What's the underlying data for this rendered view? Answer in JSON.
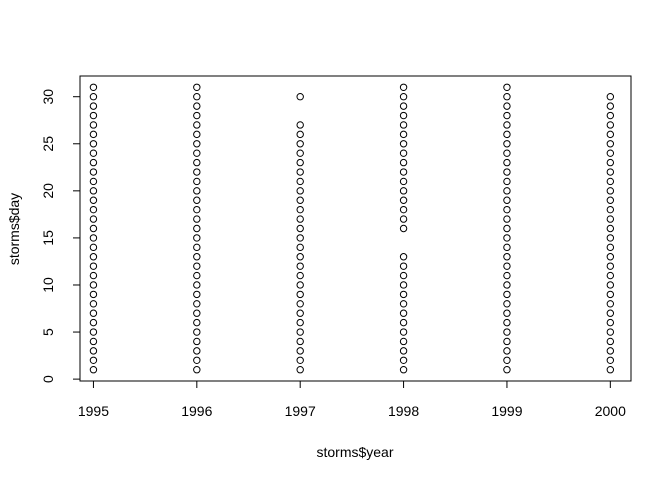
{
  "chart_data": {
    "type": "scatter",
    "title": "",
    "xlabel": "storms$year",
    "ylabel": "storms$day",
    "xlim": [
      1994.87,
      2000.2
    ],
    "ylim": [
      -0.2,
      32.2
    ],
    "x_ticks": [
      1995,
      1996,
      1997,
      1998,
      1999,
      2000
    ],
    "y_ticks": [
      0,
      5,
      10,
      15,
      20,
      25,
      30
    ],
    "grid": false,
    "legend": "none",
    "marker": "open-circle",
    "series": [
      {
        "points": [
          {
            "x": 1995,
            "y": [
              1,
              2,
              3,
              4,
              5,
              6,
              7,
              8,
              9,
              10,
              11,
              12,
              13,
              14,
              15,
              16,
              17,
              18,
              19,
              20,
              21,
              22,
              23,
              24,
              25,
              26,
              27,
              28,
              29,
              30,
              31
            ]
          },
          {
            "x": 1996,
            "y": [
              1,
              2,
              3,
              4,
              5,
              6,
              7,
              8,
              9,
              10,
              11,
              12,
              13,
              14,
              15,
              16,
              17,
              18,
              19,
              20,
              21,
              22,
              23,
              24,
              25,
              26,
              27,
              28,
              29,
              30,
              31
            ]
          },
          {
            "x": 1997,
            "y": [
              1,
              2,
              3,
              4,
              5,
              6,
              7,
              8,
              9,
              10,
              11,
              12,
              13,
              14,
              15,
              16,
              17,
              18,
              19,
              20,
              21,
              22,
              23,
              24,
              25,
              26,
              27,
              30
            ]
          },
          {
            "x": 1998,
            "y": [
              1,
              2,
              3,
              4,
              5,
              6,
              7,
              8,
              9,
              10,
              11,
              12,
              13,
              16,
              17,
              18,
              19,
              20,
              21,
              22,
              23,
              24,
              25,
              26,
              27,
              28,
              29,
              30,
              31
            ]
          },
          {
            "x": 1999,
            "y": [
              1,
              2,
              3,
              4,
              5,
              6,
              7,
              8,
              9,
              10,
              11,
              12,
              13,
              14,
              15,
              16,
              17,
              18,
              19,
              20,
              21,
              22,
              23,
              24,
              25,
              26,
              27,
              28,
              29,
              30,
              31
            ]
          },
          {
            "x": 2000,
            "y": [
              1,
              2,
              3,
              4,
              5,
              6,
              7,
              8,
              9,
              10,
              11,
              12,
              13,
              14,
              15,
              16,
              17,
              18,
              19,
              20,
              21,
              22,
              23,
              24,
              25,
              26,
              27,
              28,
              29,
              30
            ]
          }
        ]
      }
    ]
  }
}
